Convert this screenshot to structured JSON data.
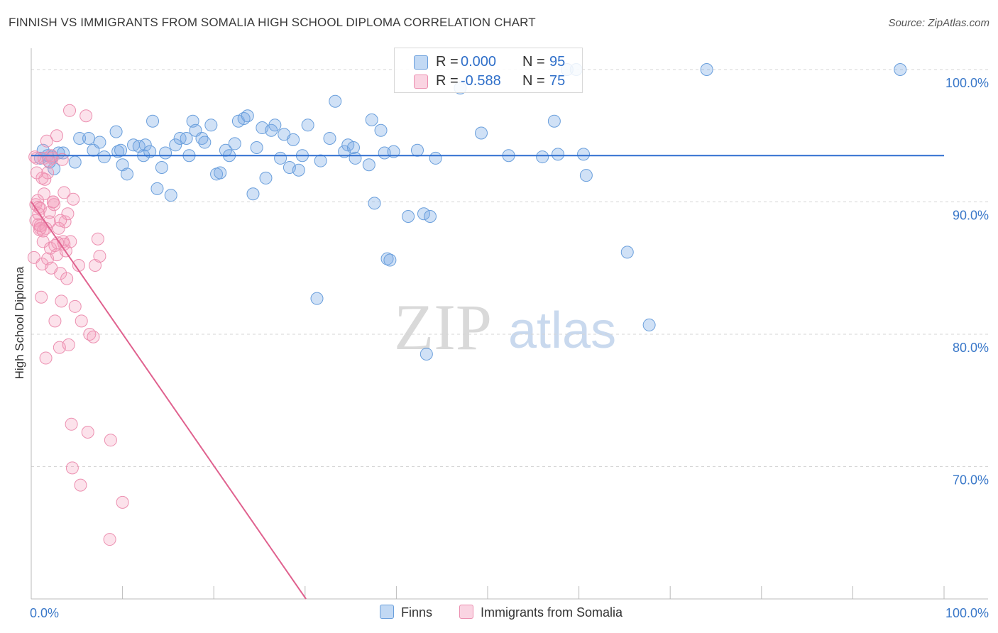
{
  "title": "FINNISH VS IMMIGRANTS FROM SOMALIA HIGH SCHOOL DIPLOMA CORRELATION CHART",
  "source": "Source: ZipAtlas.com",
  "watermark": {
    "zip": "ZIP",
    "atlas": "atlas"
  },
  "colors": {
    "finns_fill": "rgba(120,170,230,0.35)",
    "finns_stroke": "#6a9fdc",
    "finns_line": "#2f6fd0",
    "somalia_fill": "rgba(245,160,190,0.30)",
    "somalia_stroke": "#ec8fb0",
    "somalia_line": "#e0628f",
    "axis_text": "#3a78c9",
    "grid": "#d5d5d5"
  },
  "legend": {
    "rows": [
      {
        "r_label": "R =",
        "r_value": "0.000",
        "n_label": "N =",
        "n_value": "95"
      },
      {
        "r_label": "R =",
        "r_value": "-0.588",
        "n_label": "N =",
        "n_value": "75"
      }
    ]
  },
  "bottom_legend": {
    "finns": "Finns",
    "somalia": "Immigrants from Somalia"
  },
  "chart_data": {
    "type": "scatter",
    "title": "FINNISH VS IMMIGRANTS FROM SOMALIA HIGH SCHOOL DIPLOMA CORRELATION CHART",
    "xlabel": "",
    "ylabel": "High School Diploma",
    "xlim": [
      0,
      100
    ],
    "ylim": [
      60,
      101.5
    ],
    "x_tick_labels": [
      {
        "value": 0,
        "label": "0.0%"
      },
      {
        "value": 100,
        "label": "100.0%"
      }
    ],
    "y_ticks": [
      {
        "value": 100,
        "label": "100.0%"
      },
      {
        "value": 90,
        "label": "90.0%"
      },
      {
        "value": 80,
        "label": "80.0%"
      },
      {
        "value": 70,
        "label": "70.0%"
      }
    ],
    "series": [
      {
        "name": "Finns",
        "r": 0.0,
        "n": 95,
        "trend": {
          "x0": 0,
          "y0": 93.5,
          "x1": 100,
          "y1": 93.5
        },
        "points": [
          [
            1,
            93.3
          ],
          [
            1.3,
            93.9
          ],
          [
            1.8,
            93.5
          ],
          [
            2.3,
            93.4
          ],
          [
            2.5,
            92.5
          ],
          [
            3.5,
            93.7
          ],
          [
            4.8,
            93.0
          ],
          [
            5.3,
            94.8
          ],
          [
            6.3,
            94.8
          ],
          [
            6.8,
            93.9
          ],
          [
            7.5,
            94.5
          ],
          [
            8,
            93.4
          ],
          [
            9.3,
            95.3
          ],
          [
            9.5,
            93.8
          ],
          [
            9.8,
            93.9
          ],
          [
            10,
            92.8
          ],
          [
            10.5,
            92.1
          ],
          [
            11.2,
            94.3
          ],
          [
            11.8,
            94.2
          ],
          [
            12.3,
            93.5
          ],
          [
            12.5,
            94.3
          ],
          [
            13,
            93.8
          ],
          [
            13.3,
            96.1
          ],
          [
            13.8,
            91.0
          ],
          [
            14.3,
            92.6
          ],
          [
            14.7,
            93.7
          ],
          [
            15.3,
            90.5
          ],
          [
            15.8,
            94.3
          ],
          [
            16.3,
            94.8
          ],
          [
            17,
            94.8
          ],
          [
            17.3,
            93.5
          ],
          [
            17.7,
            96.1
          ],
          [
            18,
            95.4
          ],
          [
            18.7,
            94.8
          ],
          [
            19,
            94.5
          ],
          [
            19.7,
            95.8
          ],
          [
            20.3,
            92.1
          ],
          [
            20.7,
            92.2
          ],
          [
            21.3,
            93.9
          ],
          [
            21.7,
            93.5
          ],
          [
            22.3,
            94.4
          ],
          [
            22.7,
            96.1
          ],
          [
            23.3,
            96.3
          ],
          [
            23.7,
            96.5
          ],
          [
            24.3,
            90.6
          ],
          [
            24.7,
            94.1
          ],
          [
            25.3,
            95.6
          ],
          [
            25.7,
            91.8
          ],
          [
            26.3,
            95.4
          ],
          [
            26.7,
            95.8
          ],
          [
            27.3,
            93.3
          ],
          [
            27.7,
            95.1
          ],
          [
            28.3,
            92.6
          ],
          [
            28.7,
            94.7
          ],
          [
            29.3,
            92.4
          ],
          [
            29.7,
            93.5
          ],
          [
            30.3,
            95.8
          ],
          [
            31.3,
            82.7
          ],
          [
            31.7,
            93.1
          ],
          [
            32.7,
            94.8
          ],
          [
            33.3,
            97.6
          ],
          [
            34.3,
            93.8
          ],
          [
            34.7,
            94.3
          ],
          [
            35.3,
            94.1
          ],
          [
            35.5,
            93.3
          ],
          [
            37,
            92.8
          ],
          [
            37.3,
            96.2
          ],
          [
            37.6,
            89.9
          ],
          [
            38.3,
            95.4
          ],
          [
            38.7,
            93.7
          ],
          [
            39,
            85.7
          ],
          [
            39.3,
            85.6
          ],
          [
            39.7,
            93.8
          ],
          [
            41.3,
            88.9
          ],
          [
            42.3,
            93.9
          ],
          [
            43,
            89.1
          ],
          [
            43.3,
            78.5
          ],
          [
            43.7,
            88.9
          ],
          [
            44.3,
            93.3
          ],
          [
            47,
            98.6
          ],
          [
            49.3,
            95.2
          ],
          [
            52.3,
            93.5
          ],
          [
            56,
            93.4
          ],
          [
            58.7,
            100.0
          ],
          [
            59.7,
            100.0
          ],
          [
            57.3,
            96.1
          ],
          [
            57.7,
            93.6
          ],
          [
            60.5,
            93.6
          ],
          [
            60.8,
            92.0
          ],
          [
            65.3,
            86.2
          ],
          [
            67.7,
            80.7
          ],
          [
            74,
            100.0
          ],
          [
            95.2,
            100.0
          ],
          [
            2,
            93.0
          ],
          [
            3,
            93.7
          ]
        ]
      },
      {
        "name": "Immigrants from Somalia",
        "r": -0.588,
        "n": 75,
        "trend": {
          "x0": 0,
          "y0": 90.0,
          "x1": 30.1,
          "y1": 60.0
        },
        "points": [
          [
            0.3,
            85.8
          ],
          [
            0.5,
            88.6
          ],
          [
            0.5,
            89.8
          ],
          [
            0.6,
            93.3
          ],
          [
            0.7,
            90.1
          ],
          [
            0.8,
            88.3
          ],
          [
            0.8,
            89.6
          ],
          [
            0.9,
            87.9
          ],
          [
            1,
            89.5
          ],
          [
            1,
            88.0
          ],
          [
            1.1,
            82.8
          ],
          [
            1.2,
            85.3
          ],
          [
            1.3,
            87.0
          ],
          [
            1.3,
            87.8
          ],
          [
            1.4,
            93.3
          ],
          [
            1.5,
            91.7
          ],
          [
            1.6,
            78.2
          ],
          [
            1.7,
            94.6
          ],
          [
            1.8,
            85.7
          ],
          [
            1.8,
            92.2
          ],
          [
            2,
            89.2
          ],
          [
            2,
            88.5
          ],
          [
            2.1,
            86.5
          ],
          [
            2.2,
            85.0
          ],
          [
            2.3,
            93.3
          ],
          [
            2.4,
            90.0
          ],
          [
            2.5,
            89.8
          ],
          [
            2.6,
            81.0
          ],
          [
            2.8,
            86.0
          ],
          [
            2.8,
            95.0
          ],
          [
            3.1,
            79.0
          ],
          [
            3.2,
            84.6
          ],
          [
            3.3,
            82.5
          ],
          [
            3.4,
            93.2
          ],
          [
            3.5,
            87.0
          ],
          [
            3.6,
            86.8
          ],
          [
            3.7,
            88.5
          ],
          [
            3.8,
            86.3
          ],
          [
            3.9,
            84.2
          ],
          [
            4,
            89.1
          ],
          [
            4.1,
            79.2
          ],
          [
            4.2,
            96.9
          ],
          [
            4.3,
            87.0
          ],
          [
            4.4,
            73.2
          ],
          [
            4.5,
            69.9
          ],
          [
            4.6,
            90.2
          ],
          [
            4.8,
            82.1
          ],
          [
            5.2,
            85.2
          ],
          [
            5.4,
            68.6
          ],
          [
            5.5,
            81.0
          ],
          [
            6,
            96.5
          ],
          [
            6.2,
            72.6
          ],
          [
            6.4,
            80.0
          ],
          [
            6.8,
            79.8
          ],
          [
            7,
            85.2
          ],
          [
            7.3,
            87.2
          ],
          [
            7.5,
            85.9
          ],
          [
            8.6,
            64.5
          ],
          [
            8.7,
            72.0
          ],
          [
            10,
            67.3
          ],
          [
            1.2,
            91.8
          ],
          [
            2.4,
            90.0
          ],
          [
            2.6,
            86.7
          ],
          [
            3.0,
            88.0
          ],
          [
            0.4,
            93.4
          ],
          [
            0.6,
            92.2
          ],
          [
            1.0,
            88.2
          ],
          [
            3.2,
            88.6
          ],
          [
            2.2,
            93.5
          ],
          [
            1.6,
            88.0
          ],
          [
            0.8,
            89.1
          ],
          [
            1.4,
            90.6
          ],
          [
            2.9,
            86.9
          ],
          [
            3.6,
            90.7
          ],
          [
            1.9,
            93.1
          ]
        ]
      }
    ]
  }
}
